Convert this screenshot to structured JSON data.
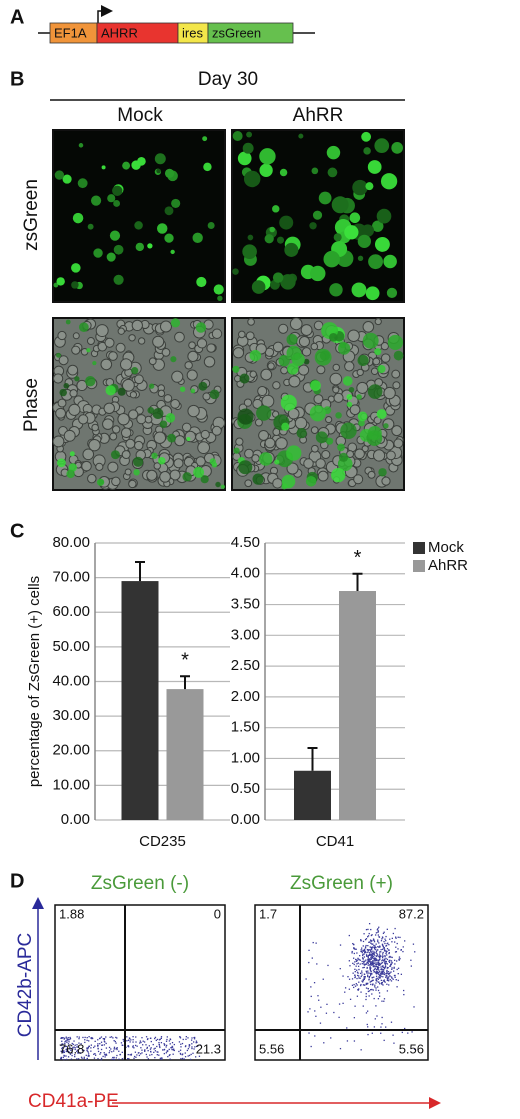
{
  "panel_labels": [
    "A",
    "B",
    "C",
    "D"
  ],
  "construct": {
    "segments": [
      {
        "label": "EF1A",
        "color": "#f0943a"
      },
      {
        "label": "AHRR",
        "color": "#e8342f"
      },
      {
        "label": "ires",
        "color": "#f3e64a"
      },
      {
        "label": "zsGreen",
        "color": "#66c04e"
      }
    ]
  },
  "images": {
    "title": "Day 30",
    "columns": [
      "Mock",
      "AhRR"
    ],
    "rows": [
      "zsGreen",
      "Phase"
    ]
  },
  "chart_data": [
    {
      "type": "bar",
      "ylabel": "percentage of ZsGreen (+) cells",
      "categories": [
        "CD235"
      ],
      "series": [
        {
          "color": "#333333",
          "values": [
            69.0
          ],
          "errors": [
            5.5
          ]
        },
        {
          "color": "#999999",
          "values": [
            37.8
          ],
          "errors": [
            3.7
          ]
        }
      ],
      "annotation": "*",
      "grid": true,
      "ylim": [
        0,
        80
      ],
      "yticks": [
        {
          "value": 0,
          "label": "0.00"
        },
        {
          "value": 10,
          "label": "10.00"
        },
        {
          "value": 20,
          "label": "20.00"
        },
        {
          "value": 30,
          "label": "30.00"
        },
        {
          "value": 40,
          "label": "40.00"
        },
        {
          "value": 50,
          "label": "50.00"
        },
        {
          "value": 60,
          "label": "60.00"
        },
        {
          "value": 70,
          "label": "70.00"
        },
        {
          "value": 80,
          "label": "80.00"
        }
      ]
    },
    {
      "type": "bar",
      "categories": [
        "CD41"
      ],
      "series": [
        {
          "name": "Mock",
          "color": "#333333",
          "values": [
            0.8
          ],
          "errors": [
            0.37
          ]
        },
        {
          "name": "AhRR",
          "color": "#999999",
          "values": [
            3.72
          ],
          "errors": [
            0.28
          ]
        }
      ],
      "annotation": "*",
      "grid": true,
      "legend": "right",
      "ylim": [
        0,
        4.5
      ],
      "yticks": [
        {
          "value": 0,
          "label": "0.00"
        },
        {
          "value": 0.5,
          "label": "0.50"
        },
        {
          "value": 1,
          "label": "1.00"
        },
        {
          "value": 1.5,
          "label": "1.50"
        },
        {
          "value": 2,
          "label": "2.00"
        },
        {
          "value": 2.5,
          "label": "2.50"
        },
        {
          "value": 3,
          "label": "3.00"
        },
        {
          "value": 3.5,
          "label": "3.50"
        },
        {
          "value": 4,
          "label": "4.00"
        },
        {
          "value": 4.5,
          "label": "4.50"
        }
      ]
    }
  ],
  "flow": {
    "xlabel": "CD41a-PE",
    "ylabel": "CD42b-APC",
    "plots": [
      {
        "title": "ZsGreen (-)",
        "quadrants": [
          1.88,
          0,
          76.8,
          21.3
        ]
      },
      {
        "title": "ZsGreen (+)",
        "quadrants": [
          1.7,
          87.2,
          5.56,
          5.56
        ]
      }
    ]
  }
}
